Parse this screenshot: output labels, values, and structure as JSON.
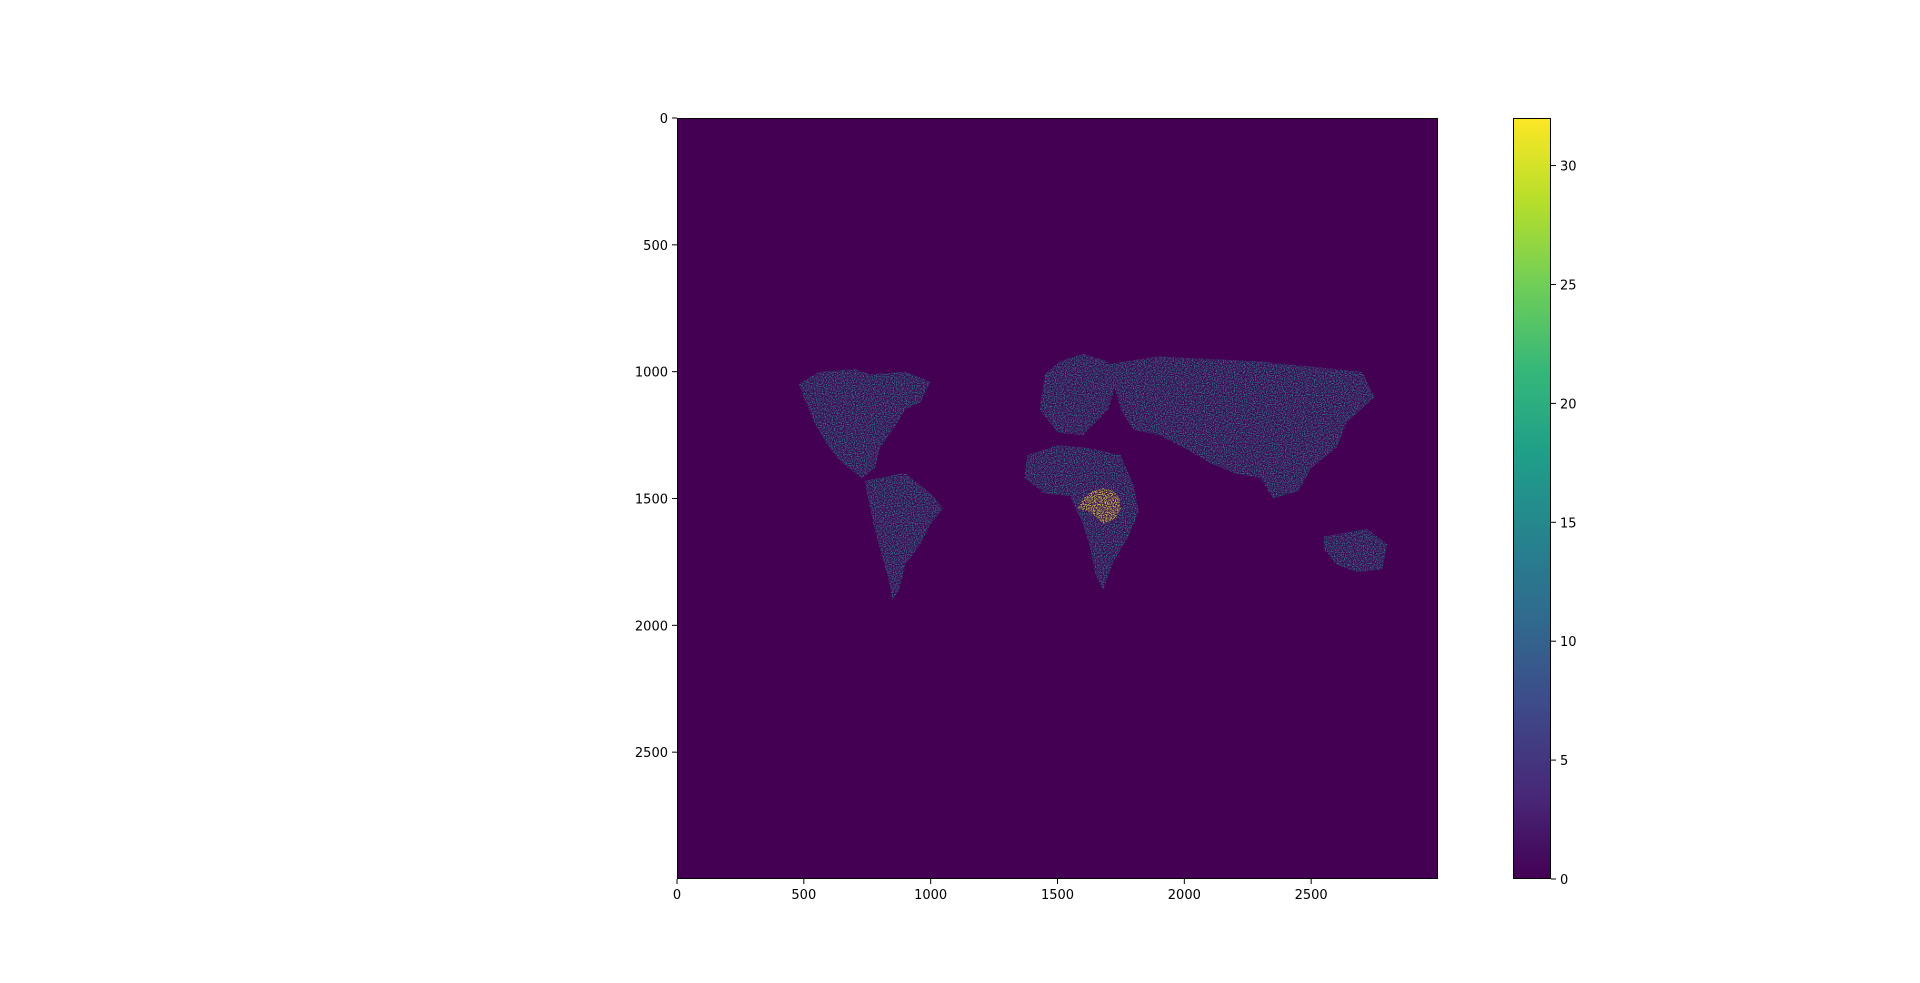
{
  "chart_data": [
    {
      "type": "heatmap",
      "title": "",
      "xlabel": "",
      "ylabel": "",
      "image_size": [
        3000,
        3000
      ],
      "xlim": [
        0,
        3000
      ],
      "ylim": [
        3000,
        0
      ],
      "x_ticks": [
        0,
        500,
        1000,
        1500,
        2000,
        2500
      ],
      "y_ticks": [
        0,
        500,
        1000,
        1500,
        2000,
        2500
      ],
      "colormap": "viridis",
      "background_value": 0,
      "land_value": 16,
      "hotspot_value": 32,
      "hotspot_center": [
        1700,
        1530
      ],
      "grid": false,
      "colors": {
        "background": "#440154",
        "land": "#21918c",
        "hotspot": "#fde725"
      },
      "regions": [
        {
          "name": "land",
          "value": 16,
          "polygons": [
            [
              [
                480,
                1050
              ],
              [
                560,
                1000
              ],
              [
                700,
                990
              ],
              [
                760,
                1010
              ],
              [
                900,
                1000
              ],
              [
                1000,
                1040
              ],
              [
                960,
                1120
              ],
              [
                900,
                1150
              ],
              [
                850,
                1230
              ],
              [
                800,
                1300
              ],
              [
                780,
                1380
              ],
              [
                730,
                1420
              ],
              [
                650,
                1360
              ],
              [
                600,
                1300
              ],
              [
                540,
                1200
              ]
            ],
            [
              [
                740,
                1430
              ],
              [
                900,
                1400
              ],
              [
                1000,
                1480
              ],
              [
                1050,
                1540
              ],
              [
                1000,
                1600
              ],
              [
                960,
                1680
              ],
              [
                900,
                1760
              ],
              [
                880,
                1850
              ],
              [
                850,
                1900
              ],
              [
                830,
                1800
              ],
              [
                800,
                1700
              ],
              [
                770,
                1580
              ]
            ],
            [
              [
                1450,
                1010
              ],
              [
                1510,
                960
              ],
              [
                1600,
                930
              ],
              [
                1700,
                960
              ],
              [
                1730,
                1050
              ],
              [
                1700,
                1150
              ],
              [
                1600,
                1250
              ],
              [
                1500,
                1240
              ],
              [
                1430,
                1150
              ]
            ],
            [
              [
                1380,
                1330
              ],
              [
                1500,
                1290
              ],
              [
                1620,
                1300
              ],
              [
                1750,
                1330
              ],
              [
                1800,
                1450
              ],
              [
                1820,
                1550
              ],
              [
                1780,
                1650
              ],
              [
                1720,
                1750
              ],
              [
                1680,
                1860
              ],
              [
                1650,
                1800
              ],
              [
                1630,
                1700
              ],
              [
                1600,
                1600
              ],
              [
                1550,
                1490
              ],
              [
                1450,
                1480
              ],
              [
                1370,
                1420
              ]
            ],
            [
              [
                1700,
                970
              ],
              [
                1900,
                940
              ],
              [
                2100,
                950
              ],
              [
                2300,
                960
              ],
              [
                2500,
                980
              ],
              [
                2700,
                1000
              ],
              [
                2750,
                1100
              ],
              [
                2640,
                1200
              ],
              [
                2600,
                1300
              ],
              [
                2500,
                1380
              ],
              [
                2450,
                1470
              ],
              [
                2350,
                1500
              ],
              [
                2300,
                1420
              ],
              [
                2200,
                1400
              ],
              [
                2100,
                1360
              ],
              [
                2000,
                1300
              ],
              [
                1900,
                1250
              ],
              [
                1800,
                1230
              ],
              [
                1750,
                1150
              ]
            ],
            [
              [
                2550,
                1650
              ],
              [
                2720,
                1620
              ],
              [
                2800,
                1680
              ],
              [
                2780,
                1780
              ],
              [
                2680,
                1790
              ],
              [
                2600,
                1760
              ],
              [
                2550,
                1700
              ]
            ]
          ]
        },
        {
          "name": "hotspot",
          "value": 32,
          "polygons": [
            [
              [
                1600,
                1500
              ],
              [
                1640,
                1470
              ],
              [
                1680,
                1460
              ],
              [
                1720,
                1470
              ],
              [
                1745,
                1500
              ],
              [
                1750,
                1540
              ],
              [
                1730,
                1580
              ],
              [
                1680,
                1600
              ],
              [
                1650,
                1570
              ],
              [
                1620,
                1550
              ],
              [
                1580,
                1540
              ]
            ]
          ]
        }
      ]
    },
    {
      "type": "colorbar",
      "colormap": "viridis",
      "range": [
        0,
        32
      ],
      "ticks": [
        0,
        5,
        10,
        15,
        20,
        25,
        30
      ],
      "stops": [
        "#440154",
        "#482878",
        "#3e4989",
        "#31688e",
        "#26828e",
        "#1f9e89",
        "#35b779",
        "#6ece58",
        "#b5de2b",
        "#fde725"
      ]
    }
  ]
}
